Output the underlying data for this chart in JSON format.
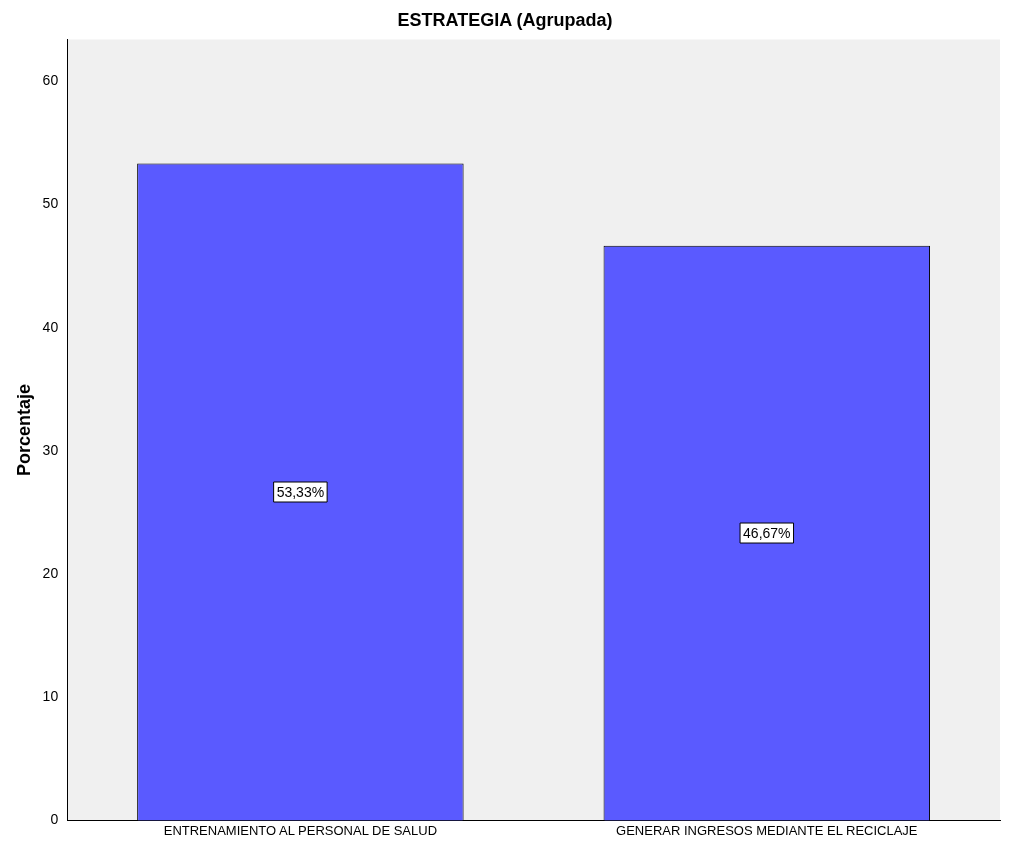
{
  "chart_data": {
    "type": "bar",
    "title": "ESTRATEGIA (Agrupada)",
    "ylabel": "Porcentaje",
    "categories": [
      "ENTRENAMIENTO AL PERSONAL DE SALUD",
      "GENERAR INGRESOS MEDIANTE EL RECICLAJE"
    ],
    "values": [
      53.33,
      46.67
    ],
    "value_labels": [
      "53,33%",
      "46,67%"
    ],
    "color": "#5a5aff",
    "ylim": [
      0,
      63.4
    ],
    "yticks": [
      0,
      10,
      20,
      30,
      40,
      50,
      60
    ],
    "grid": false,
    "legend": false
  }
}
